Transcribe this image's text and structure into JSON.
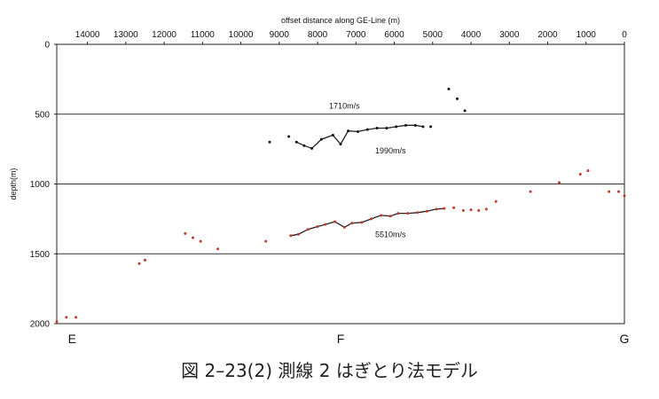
{
  "chart_data": {
    "type": "scatter",
    "xlabel": "offset distance along GE-Line (m)",
    "ylabel": "depth(m)",
    "xlim": [
      14800,
      0
    ],
    "ylim": [
      0,
      2000
    ],
    "x_ticks": [
      14000,
      13000,
      12000,
      11000,
      10000,
      9000,
      8000,
      7000,
      6000,
      5000,
      4000,
      3000,
      2000,
      1000,
      0
    ],
    "y_ticks": [
      0,
      500,
      1000,
      1500,
      2000
    ],
    "gridlines_y": [
      500,
      1000,
      1500
    ],
    "grid": "horizontal",
    "location_labels": [
      {
        "text": "E",
        "x": 14400
      },
      {
        "text": "F",
        "x": 7400
      },
      {
        "text": "G",
        "x": 0
      }
    ],
    "annotations": [
      {
        "text": "1710m/s",
        "x": 7300,
        "y": 460
      },
      {
        "text": "1990m/s",
        "x": 6100,
        "y": 780
      },
      {
        "text": "5510m/s",
        "x": 6100,
        "y": 1380
      }
    ],
    "series": [
      {
        "color": "#111111",
        "style": "markers",
        "points": [
          [
            9250,
            700
          ],
          [
            8750,
            660
          ],
          [
            5050,
            590
          ],
          [
            4580,
            320
          ],
          [
            4360,
            390
          ],
          [
            4160,
            475
          ]
        ]
      },
      {
        "color": "#111111",
        "style": "line",
        "points": [
          [
            8550,
            700
          ],
          [
            8350,
            725
          ],
          [
            8150,
            745
          ],
          [
            7900,
            680
          ],
          [
            7600,
            650
          ],
          [
            7400,
            715
          ],
          [
            7200,
            620
          ],
          [
            6950,
            625
          ],
          [
            6700,
            610
          ],
          [
            6450,
            600
          ],
          [
            6200,
            600
          ],
          [
            5950,
            590
          ],
          [
            5700,
            580
          ],
          [
            5450,
            580
          ],
          [
            5250,
            590
          ]
        ]
      },
      {
        "color": "#c0392b",
        "style": "markers",
        "points": [
          [
            14800,
            1985
          ],
          [
            14550,
            1955
          ],
          [
            14300,
            1955
          ],
          [
            12650,
            1570
          ],
          [
            12500,
            1545
          ],
          [
            11450,
            1355
          ],
          [
            11250,
            1385
          ],
          [
            11050,
            1410
          ],
          [
            10600,
            1465
          ],
          [
            9350,
            1410
          ],
          [
            4450,
            1170
          ],
          [
            4200,
            1190
          ],
          [
            4000,
            1185
          ],
          [
            3800,
            1190
          ],
          [
            3600,
            1180
          ],
          [
            3350,
            1125
          ],
          [
            2450,
            1055
          ],
          [
            1700,
            990
          ],
          [
            1150,
            930
          ],
          [
            950,
            905
          ],
          [
            400,
            1055
          ],
          [
            150,
            1055
          ],
          [
            0,
            1085
          ]
        ]
      },
      {
        "color": "#c0392b",
        "style": "line",
        "points": [
          [
            8700,
            1370
          ],
          [
            8500,
            1360
          ],
          [
            8250,
            1325
          ],
          [
            8000,
            1305
          ],
          [
            7800,
            1290
          ],
          [
            7550,
            1270
          ],
          [
            7300,
            1310
          ],
          [
            7100,
            1280
          ],
          [
            6850,
            1275
          ],
          [
            6600,
            1250
          ],
          [
            6350,
            1225
          ],
          [
            6100,
            1230
          ],
          [
            5900,
            1210
          ],
          [
            5650,
            1210
          ],
          [
            5400,
            1205
          ],
          [
            5150,
            1195
          ],
          [
            4900,
            1180
          ],
          [
            4700,
            1175
          ]
        ]
      }
    ]
  },
  "caption": "図 2–23(2)  測線 2 はぎとり法モデル"
}
